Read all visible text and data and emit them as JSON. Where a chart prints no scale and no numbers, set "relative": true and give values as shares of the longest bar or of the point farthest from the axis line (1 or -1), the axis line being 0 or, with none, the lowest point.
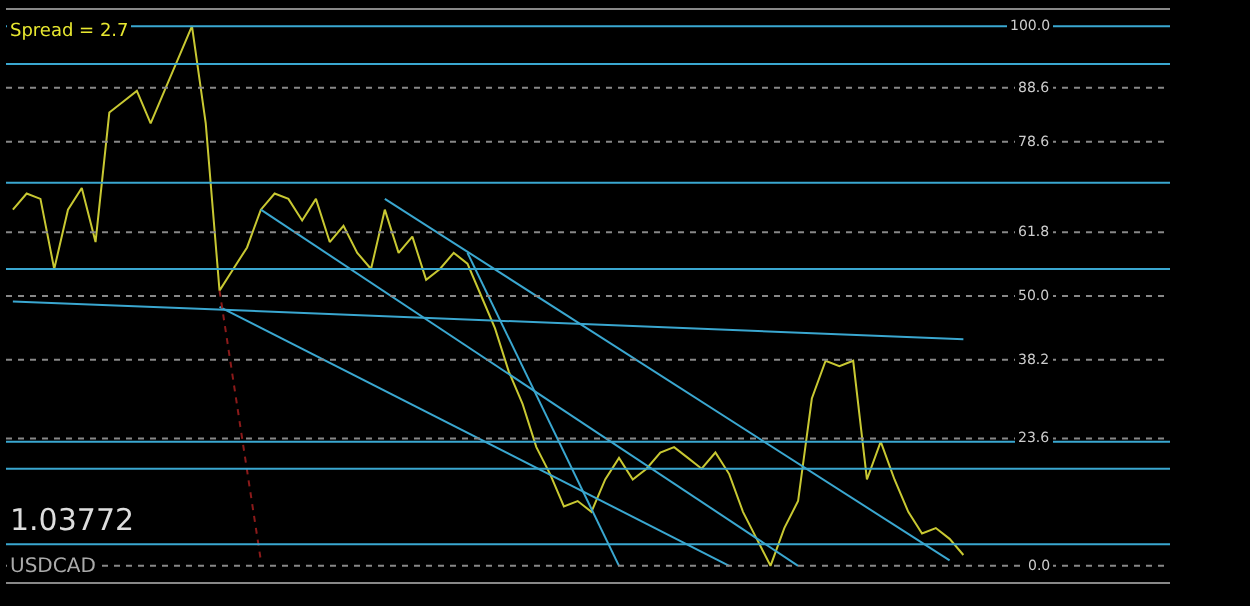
{
  "chart_data": {
    "type": "line",
    "relative": true,
    "categories": [
      null,
      null,
      null,
      null,
      null,
      null,
      null,
      null,
      null,
      null,
      null,
      null,
      null,
      null,
      null,
      null,
      null,
      null,
      null,
      null,
      null,
      null,
      null,
      null,
      null,
      null,
      null,
      null,
      null,
      null,
      null,
      null,
      null,
      null,
      null,
      null,
      null,
      null,
      null,
      null,
      null,
      null,
      null,
      null,
      null,
      null,
      null,
      null,
      null,
      null,
      null,
      null,
      null,
      null,
      null,
      null,
      null,
      null,
      null,
      null,
      null,
      null,
      null,
      null,
      null,
      null,
      null,
      null,
      null,
      null
    ],
    "series": [
      {
        "color": "#c8c832",
        "values": [
          0.66,
          0.69,
          0.68,
          0.55,
          0.66,
          0.7,
          0.6,
          0.84,
          0.86,
          0.88,
          0.82,
          0.88,
          0.94,
          1,
          0.82,
          0.51,
          0.55,
          0.59,
          0.66,
          0.69,
          0.68,
          0.64,
          0.68,
          0.6,
          0.63,
          0.58,
          0.55,
          0.66,
          0.58,
          0.61,
          0.53,
          0.55,
          0.58,
          0.56,
          0.5,
          0.44,
          0.36,
          0.3,
          0.22,
          0.17,
          0.11,
          0.12,
          0.1,
          0.16,
          0.2,
          0.16,
          0.18,
          0.21,
          0.22,
          0.2,
          0.18,
          0.21,
          0.17,
          0.1,
          0.05,
          0,
          0.07,
          0.12,
          0.31,
          0.38,
          0.37,
          0.38,
          0.16,
          0.23,
          0.16,
          0.1,
          0.06,
          0.07,
          0.05,
          0.02
        ]
      },
      {
        "color": "#3aa7d0",
        "values": [
          null,
          null,
          null,
          null,
          null,
          null,
          null,
          null,
          null,
          null,
          null,
          null,
          null,
          null,
          null,
          null,
          null,
          null,
          0.66,
          null,
          null,
          null,
          null,
          null,
          null,
          null,
          null,
          null,
          null,
          null,
          null,
          null,
          null,
          null,
          null,
          null,
          null,
          null,
          null,
          null,
          null,
          null,
          null,
          null,
          null,
          null,
          null,
          null,
          null,
          null,
          null,
          null,
          null,
          null,
          null,
          null,
          null,
          0,
          null,
          null,
          null,
          null,
          null,
          null,
          null,
          null,
          null,
          null,
          null,
          null
        ]
      },
      {
        "color": "#3aa7d0",
        "values": [
          null,
          null,
          null,
          null,
          null,
          null,
          null,
          null,
          null,
          null,
          null,
          null,
          null,
          null,
          null,
          0.48,
          null,
          null,
          null,
          null,
          null,
          null,
          null,
          null,
          null,
          null,
          null,
          null,
          null,
          null,
          null,
          null,
          null,
          null,
          null,
          null,
          null,
          null,
          null,
          null,
          null,
          null,
          null,
          null,
          null,
          null,
          null,
          null,
          null,
          null,
          null,
          null,
          0,
          null,
          null,
          null,
          null,
          null,
          null,
          null,
          null,
          null,
          null,
          null,
          null,
          null,
          null,
          null,
          null,
          null
        ]
      },
      {
        "color": "#3aa7d0",
        "values": [
          null,
          null,
          null,
          null,
          null,
          null,
          null,
          null,
          null,
          null,
          null,
          null,
          null,
          null,
          null,
          null,
          null,
          null,
          null,
          null,
          null,
          null,
          null,
          null,
          null,
          null,
          null,
          0.68,
          null,
          null,
          null,
          null,
          null,
          null,
          null,
          null,
          null,
          null,
          null,
          null,
          null,
          null,
          null,
          null,
          null,
          null,
          null,
          null,
          null,
          null,
          null,
          null,
          null,
          null,
          null,
          null,
          null,
          null,
          null,
          null,
          null,
          null,
          null,
          null,
          null,
          null,
          null,
          null,
          0.01,
          null
        ]
      },
      {
        "color": "#3aa7d0",
        "values": [
          null,
          null,
          null,
          null,
          null,
          null,
          null,
          null,
          null,
          null,
          null,
          null,
          null,
          null,
          null,
          null,
          null,
          null,
          null,
          null,
          null,
          null,
          null,
          null,
          null,
          null,
          null,
          null,
          null,
          null,
          null,
          null,
          null,
          0.58,
          null,
          null,
          null,
          null,
          null,
          null,
          null,
          null,
          null,
          null,
          0,
          null,
          null,
          null,
          null,
          null,
          null,
          null,
          null,
          null,
          null,
          null,
          null,
          null,
          null,
          null,
          null,
          null,
          null,
          null,
          null,
          null,
          null,
          null,
          null,
          null
        ]
      },
      {
        "color": "#3aa7d0",
        "values": [
          0.49,
          null,
          null,
          null,
          null,
          null,
          null,
          null,
          null,
          null,
          null,
          null,
          null,
          null,
          null,
          null,
          null,
          null,
          null,
          null,
          null,
          null,
          null,
          null,
          null,
          null,
          null,
          null,
          null,
          null,
          null,
          null,
          null,
          null,
          null,
          null,
          null,
          null,
          null,
          null,
          null,
          null,
          null,
          null,
          null,
          null,
          null,
          null,
          null,
          null,
          null,
          null,
          null,
          null,
          null,
          null,
          null,
          null,
          null,
          null,
          null,
          null,
          null,
          null,
          null,
          null,
          null,
          null,
          null,
          0.42
        ]
      },
      {
        "color": "#8b1a1a",
        "line_style": "dotted",
        "values": [
          null,
          null,
          null,
          null,
          null,
          null,
          null,
          null,
          null,
          null,
          null,
          null,
          null,
          null,
          null,
          0.51,
          null,
          null,
          0.01,
          null,
          null,
          null,
          null,
          null,
          null,
          null,
          null,
          null,
          null,
          null,
          null,
          null,
          null,
          null,
          null,
          null,
          null,
          null,
          null,
          null,
          null,
          null,
          null,
          null,
          null,
          null,
          null,
          null,
          null,
          null,
          null,
          null,
          null,
          null,
          null,
          null,
          null,
          null,
          null,
          null,
          null,
          null,
          null,
          null,
          null,
          null,
          null,
          null,
          null,
          null
        ]
      }
    ],
    "ref_lines": [
      {
        "axis": "y",
        "value": 1.0,
        "label": "100.0",
        "color": "#3aa7d0"
      },
      {
        "axis": "y",
        "value": 0.93,
        "color": "#3aa7d0"
      },
      {
        "axis": "y",
        "value": 0.886,
        "label": "88.6",
        "color": "#888888",
        "line_style": "dotted"
      },
      {
        "axis": "y",
        "value": 0.786,
        "label": "78.6",
        "color": "#888888",
        "line_style": "dotted"
      },
      {
        "axis": "y",
        "value": 0.71,
        "color": "#3aa7d0"
      },
      {
        "axis": "y",
        "value": 0.618,
        "label": "61.8",
        "color": "#888888",
        "line_style": "dotted"
      },
      {
        "axis": "y",
        "value": 0.55,
        "color": "#3aa7d0"
      },
      {
        "axis": "y",
        "value": 0.5,
        "label": "50.0",
        "color": "#888888",
        "line_style": "dotted"
      },
      {
        "axis": "y",
        "value": 0.382,
        "label": "38.2",
        "color": "#888888",
        "line_style": "dotted"
      },
      {
        "axis": "y",
        "value": 0.236,
        "label": "23.6",
        "color": "#888888",
        "line_style": "dotted"
      },
      {
        "axis": "y",
        "value": 0.23,
        "color": "#3aa7d0"
      },
      {
        "axis": "y",
        "value": 0.18,
        "color": "#3aa7d0"
      },
      {
        "axis": "y",
        "value": 0.04,
        "color": "#3aa7d0"
      },
      {
        "axis": "y",
        "value": 0,
        "label": "0.0",
        "color": "#888888",
        "line_style": "dotted"
      }
    ],
    "annotations": [
      "Spread = 2.7",
      "1.03772",
      "USDCAD"
    ]
  }
}
